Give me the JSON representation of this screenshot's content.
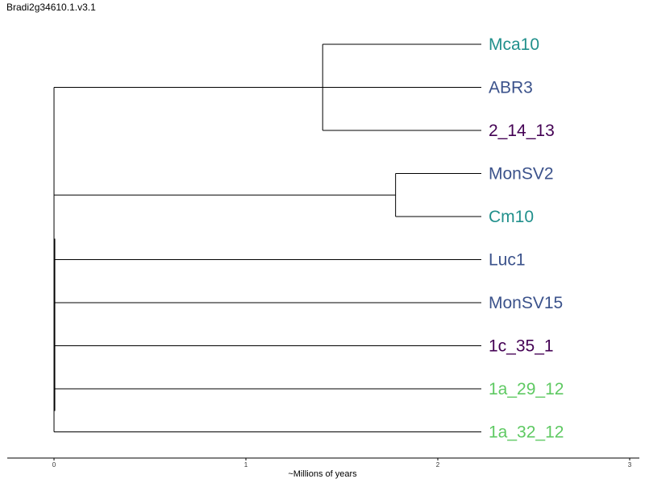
{
  "title": "Bradi2g34610.1.v3.1",
  "xlabel": "~Millions of years",
  "axis_ticks": [
    "0",
    "1",
    "2",
    "3"
  ],
  "colors": {
    "teal": "#21908c",
    "blue": "#3b528b",
    "purple": "#440154",
    "green": "#5ec962",
    "line": "#000000"
  },
  "chart_data": {
    "type": "dendrogram",
    "xlim": [
      0,
      3
    ],
    "leaves": [
      {
        "name": "Mca10",
        "color": "#21908c"
      },
      {
        "name": "ABR3",
        "color": "#3b528b"
      },
      {
        "name": "2_14_13",
        "color": "#440154"
      },
      {
        "name": "MonSV2",
        "color": "#3b528b"
      },
      {
        "name": "Cm10",
        "color": "#21908c"
      },
      {
        "name": "Luc1",
        "color": "#3b528b"
      },
      {
        "name": "MonSV15",
        "color": "#3b528b"
      },
      {
        "name": "1c_35_1",
        "color": "#440154"
      },
      {
        "name": "1a_29_12",
        "color": "#5ec962"
      },
      {
        "name": "1a_32_12",
        "color": "#5ec962"
      }
    ],
    "clades": [
      {
        "members": [
          "Mca10",
          "2_14_13"
        ],
        "node_height": 1.4
      },
      {
        "members": [
          "MonSV2",
          "Cm10"
        ],
        "node_height": 1.78
      }
    ],
    "root_height": 0
  }
}
